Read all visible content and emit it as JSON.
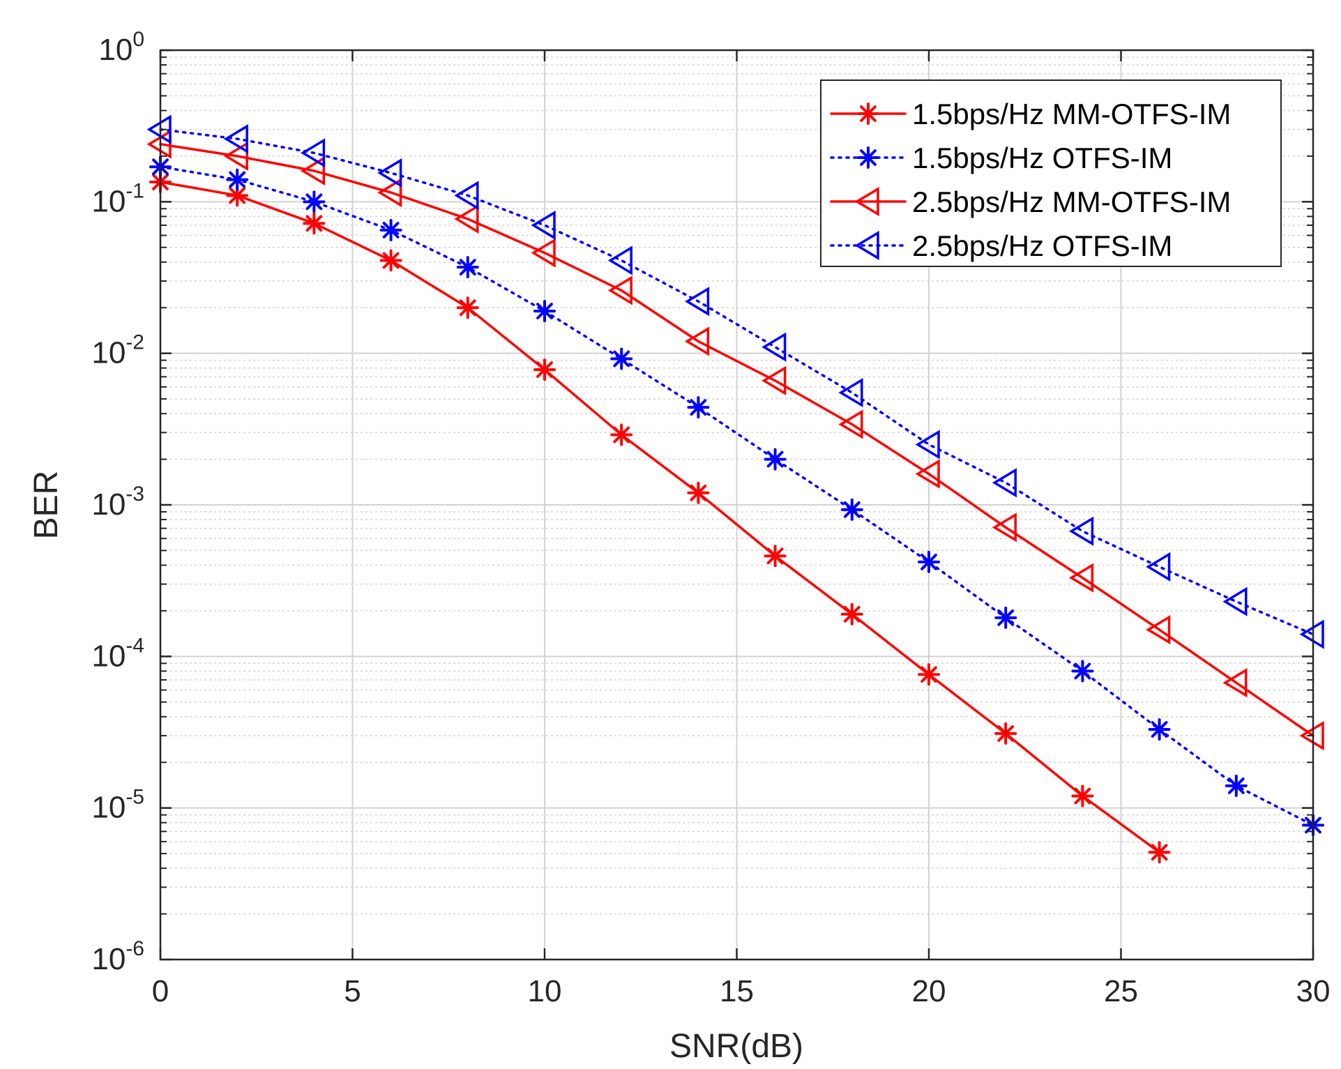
{
  "chart_data": {
    "type": "line",
    "xlabel": "SNR(dB)",
    "ylabel": "BER",
    "y_scale": "log",
    "xlim": [
      0,
      30
    ],
    "ylim": [
      1e-06,
      1
    ],
    "grid": true,
    "minor_grid": true,
    "legend_position": "top-right",
    "x_ticks": [
      0,
      5,
      10,
      15,
      20,
      25,
      30
    ],
    "y_ticks": [
      {
        "base": "10",
        "exp": "0",
        "value": 1
      },
      {
        "base": "10",
        "exp": "-1",
        "value": 0.1
      },
      {
        "base": "10",
        "exp": "-2",
        "value": 0.01
      },
      {
        "base": "10",
        "exp": "-3",
        "value": 0.001
      },
      {
        "base": "10",
        "exp": "-4",
        "value": 0.0001
      },
      {
        "base": "10",
        "exp": "-5",
        "value": 1e-05
      },
      {
        "base": "10",
        "exp": "-6",
        "value": 1e-06
      }
    ],
    "series": [
      {
        "name": "1.5bps/Hz MM-OTFS-IM",
        "color": "#ff0000",
        "line_style": "solid",
        "marker": "asterisk",
        "x": [
          0,
          2,
          4,
          6,
          8,
          10,
          12,
          14,
          16,
          18,
          20,
          22,
          24,
          26
        ],
        "y": [
          0.135,
          0.11,
          0.072,
          0.041,
          0.02,
          0.0078,
          0.0029,
          0.0012,
          0.00046,
          0.00019,
          7.6e-05,
          3.1e-05,
          1.2e-05,
          5.1e-06
        ]
      },
      {
        "name": "1.5bps/Hz OTFS-IM",
        "color": "#0000ff",
        "line_style": "dotted",
        "marker": "asterisk",
        "x": [
          0,
          2,
          4,
          6,
          8,
          10,
          12,
          14,
          16,
          18,
          20,
          22,
          24,
          26,
          28,
          30
        ],
        "y": [
          0.17,
          0.14,
          0.1,
          0.065,
          0.037,
          0.019,
          0.0092,
          0.0044,
          0.002,
          0.00093,
          0.00042,
          0.00018,
          8e-05,
          3.3e-05,
          1.4e-05,
          7.7e-06
        ]
      },
      {
        "name": "2.5bps/Hz MM-OTFS-IM",
        "color": "#ff0000",
        "line_style": "solid",
        "marker": "triangle-left",
        "x": [
          0,
          2,
          4,
          6,
          8,
          10,
          12,
          14,
          16,
          18,
          20,
          22,
          24,
          26,
          28,
          30
        ],
        "y": [
          0.24,
          0.2,
          0.16,
          0.115,
          0.077,
          0.046,
          0.026,
          0.012,
          0.0066,
          0.0034,
          0.0016,
          0.00071,
          0.00033,
          0.00015,
          6.7e-05,
          3e-05
        ]
      },
      {
        "name": "2.5bps/Hz OTFS-IM",
        "color": "#0000ff",
        "line_style": "dotted",
        "marker": "triangle-left",
        "x": [
          0,
          2,
          4,
          6,
          8,
          10,
          12,
          14,
          16,
          18,
          20,
          22,
          24,
          26,
          28,
          30
        ],
        "y": [
          0.3,
          0.26,
          0.21,
          0.155,
          0.11,
          0.07,
          0.041,
          0.022,
          0.011,
          0.0055,
          0.0025,
          0.0014,
          0.00067,
          0.00039,
          0.00023,
          0.00014
        ]
      }
    ]
  }
}
